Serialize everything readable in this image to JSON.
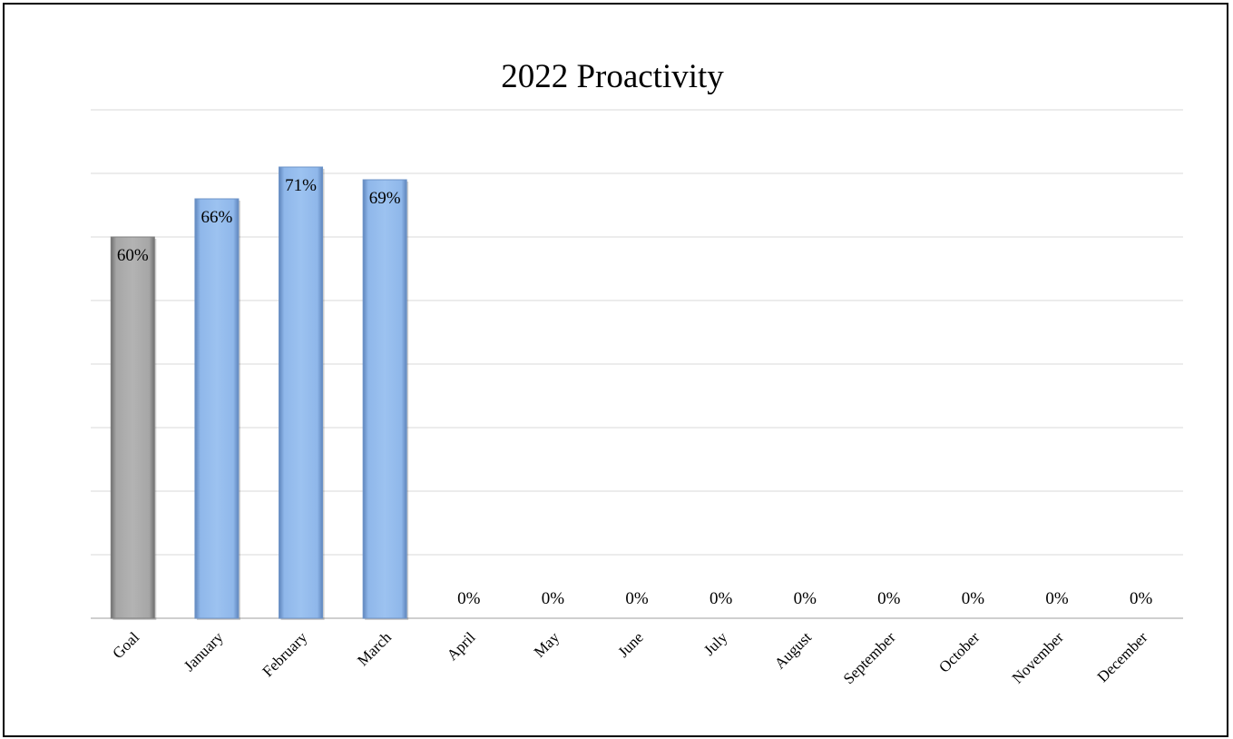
{
  "chart_data": {
    "type": "bar",
    "title": "2022 Proactivity",
    "xlabel": "",
    "ylabel": "",
    "categories": [
      "Goal",
      "January",
      "February",
      "March",
      "April",
      "May",
      "June",
      "July",
      "August",
      "September",
      "October",
      "November",
      "December"
    ],
    "values": [
      0.6,
      0.66,
      0.71,
      0.69,
      0,
      0,
      0,
      0,
      0,
      0,
      0,
      0,
      0
    ],
    "data_labels": [
      "60%",
      "66%",
      "71%",
      "69%",
      "0%",
      "0%",
      "0%",
      "0%",
      "0%",
      "0%",
      "0%",
      "0%",
      "0%"
    ],
    "ylim": [
      0,
      0.8
    ],
    "ytick_step": 0.1,
    "y_axis_labels_shown": false,
    "grid": true,
    "legend": "none",
    "colors": {
      "goal_bar": "#a6a6a6",
      "month_bar": "#8fb7ea",
      "gridline": "#d9d9d9",
      "axis_line": "#bfbfbf"
    }
  }
}
